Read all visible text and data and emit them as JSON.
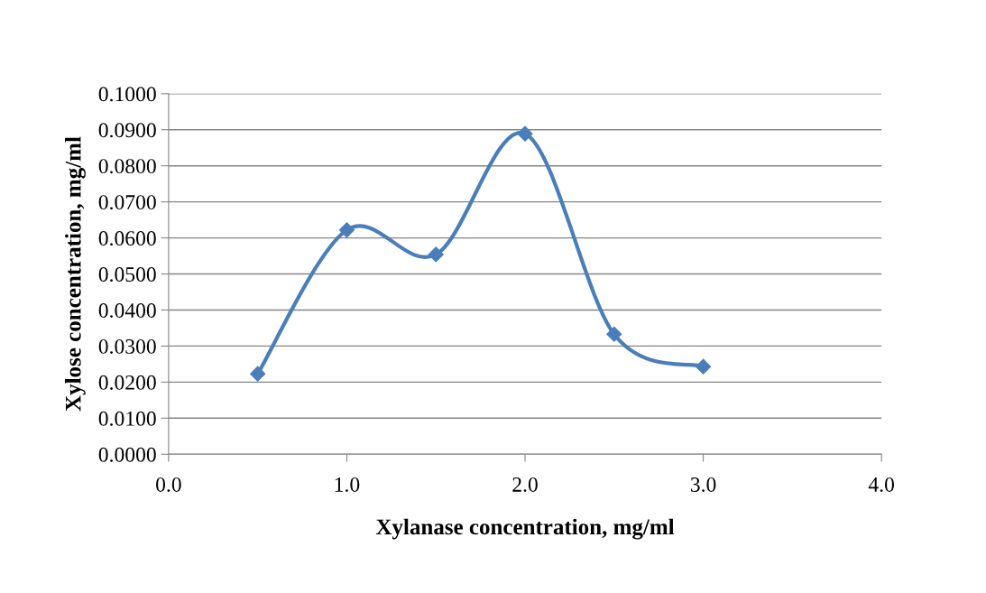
{
  "chart_data": {
    "type": "line",
    "xlabel": "Xylanase concentration, mg/ml",
    "ylabel": "Xylose concentration, mg/ml",
    "x": [
      0.5,
      1.0,
      1.5,
      2.0,
      2.5,
      3.0
    ],
    "series": [
      {
        "color": "#4a7ebb",
        "values": [
          0.0223,
          0.0622,
          0.0554,
          0.0889,
          0.0333,
          0.0243
        ]
      }
    ],
    "marker": "diamond",
    "line_style": "solid",
    "grid": "y",
    "legend": false,
    "xlim": [
      0,
      4
    ],
    "ylim": [
      0,
      0.1
    ],
    "xticks": [
      {
        "value": 0,
        "label": "0.0"
      },
      {
        "value": 1,
        "label": "1.0"
      },
      {
        "value": 2,
        "label": "2.0"
      },
      {
        "value": 3,
        "label": "3.0"
      },
      {
        "value": 4,
        "label": "4.0"
      }
    ],
    "yticks": [
      {
        "value": 0,
        "label": "0.0000"
      },
      {
        "value": 0.01,
        "label": "0.0100"
      },
      {
        "value": 0.02,
        "label": "0.0200"
      },
      {
        "value": 0.03,
        "label": "0.0300"
      },
      {
        "value": 0.04,
        "label": "0.0400"
      },
      {
        "value": 0.05,
        "label": "0.0500"
      },
      {
        "value": 0.06,
        "label": "0.0600"
      },
      {
        "value": 0.07,
        "label": "0.0700"
      },
      {
        "value": 0.08,
        "label": "0.0800"
      },
      {
        "value": 0.09,
        "label": "0.0900"
      },
      {
        "value": 0.1,
        "label": "0.1000"
      }
    ]
  }
}
